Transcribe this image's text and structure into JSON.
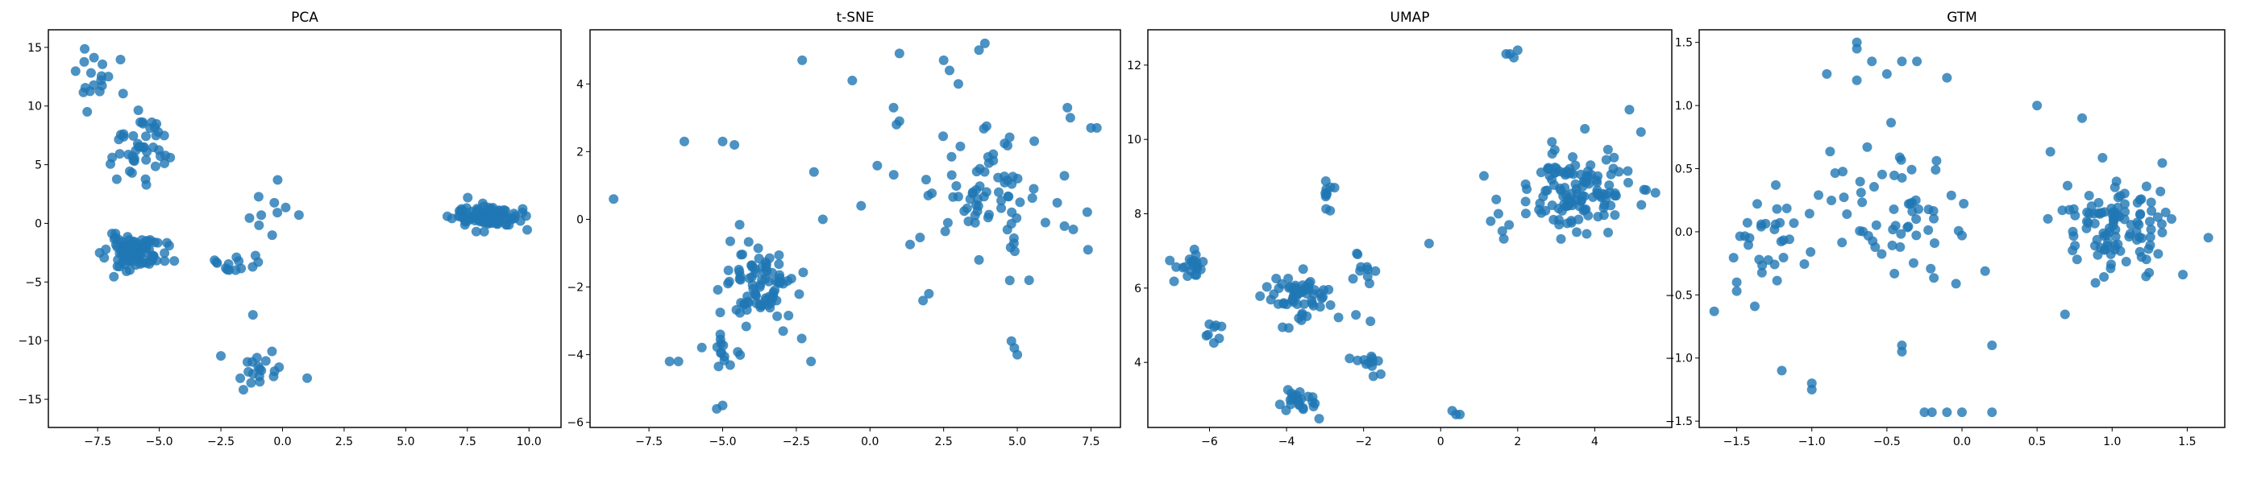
{
  "figure": {
    "background": "#ffffff",
    "point_color": "#1f77b4",
    "point_alpha": 0.8
  },
  "chart_data": [
    {
      "type": "scatter",
      "title": "PCA",
      "xlim": [
        -9.5,
        11.3
      ],
      "ylim": [
        -17.4,
        16.5
      ],
      "xticks": [
        -7.5,
        -5.0,
        -2.5,
        0.0,
        2.5,
        5.0,
        7.5,
        10.0
      ],
      "xtick_labels": [
        "−7.5",
        "−5.0",
        "−2.5",
        "0.0",
        "2.5",
        "5.0",
        "7.5",
        "10.0"
      ],
      "yticks": [
        -15,
        -10,
        -5,
        0,
        5,
        10,
        15
      ],
      "ytick_labels": [
        "−15",
        "−10",
        "−5",
        "0",
        "5",
        "10",
        "15"
      ],
      "grid": false,
      "clusters": [
        {
          "c": [
            -6.0,
            -2.5
          ],
          "s": [
            1.0,
            1.2
          ],
          "n": 90,
          "seed": 11
        },
        {
          "c": [
            -5.8,
            6.5
          ],
          "s": [
            0.9,
            2.2
          ],
          "n": 45,
          "seed": 12
        },
        {
          "c": [
            -7.7,
            12.5
          ],
          "s": [
            0.8,
            1.8
          ],
          "n": 18,
          "seed": 13
        },
        {
          "c": [
            8.3,
            0.6
          ],
          "s": [
            1.1,
            0.8
          ],
          "n": 110,
          "seed": 14
        },
        {
          "c": [
            -1.0,
            -12.5
          ],
          "s": [
            0.7,
            2.2
          ],
          "n": 18,
          "seed": 15
        },
        {
          "c": [
            -2.0,
            -3.5
          ],
          "s": [
            0.9,
            1.0
          ],
          "n": 14,
          "seed": 16
        },
        {
          "c": [
            -0.5,
            1.0
          ],
          "s": [
            0.9,
            2.2
          ],
          "n": 10,
          "seed": 17
        }
      ],
      "points": [
        [
          -2.5,
          -11.3
        ],
        [
          1.0,
          -13.2
        ],
        [
          -1.2,
          -7.8
        ]
      ]
    },
    {
      "type": "scatter",
      "title": "t-SNE",
      "xlim": [
        -9.5,
        8.5
      ],
      "ylim": [
        -6.15,
        5.6
      ],
      "xticks": [
        -7.5,
        -5.0,
        -2.5,
        0.0,
        2.5,
        5.0,
        7.5
      ],
      "xtick_labels": [
        "−7.5",
        "−5.0",
        "−2.5",
        "0.0",
        "2.5",
        "5.0",
        "7.5"
      ],
      "yticks": [
        -6,
        -4,
        -2,
        0,
        2,
        4
      ],
      "ytick_labels": [
        "−6",
        "−4",
        "−2",
        "0",
        "2",
        "4"
      ],
      "grid": false,
      "clusters": [
        {
          "c": [
            -3.8,
            -1.9
          ],
          "s": [
            1.0,
            1.1
          ],
          "n": 85,
          "seed": 21
        },
        {
          "c": [
            3.8,
            1.0
          ],
          "s": [
            1.9,
            1.4
          ],
          "n": 75,
          "seed": 22
        },
        {
          "c": [
            -5.2,
            -3.8
          ],
          "s": [
            0.6,
            0.6
          ],
          "n": 14,
          "seed": 23
        }
      ],
      "points": [
        [
          -8.7,
          0.6
        ],
        [
          -2.3,
          4.7
        ],
        [
          1.0,
          4.9
        ],
        [
          3.9,
          5.2
        ],
        [
          3.7,
          5.0
        ],
        [
          -5.0,
          2.3
        ],
        [
          -4.6,
          2.2
        ],
        [
          -6.3,
          2.3
        ],
        [
          -6.5,
          -4.2
        ],
        [
          -6.8,
          -4.2
        ],
        [
          -5.2,
          -5.6
        ],
        [
          -5.0,
          -5.5
        ],
        [
          4.8,
          -3.6
        ],
        [
          5.0,
          -4.0
        ],
        [
          4.9,
          -3.8
        ],
        [
          -0.6,
          4.1
        ],
        [
          0.8,
          3.3
        ],
        [
          0.9,
          2.8
        ],
        [
          1.0,
          2.9
        ],
        [
          2.5,
          4.7
        ],
        [
          2.7,
          4.4
        ],
        [
          3.0,
          4.0
        ],
        [
          6.7,
          3.3
        ],
        [
          6.8,
          3.0
        ],
        [
          7.7,
          2.7
        ],
        [
          7.5,
          2.7
        ],
        [
          -1.6,
          0.0
        ],
        [
          -0.3,
          0.4
        ],
        [
          -2.0,
          -4.2
        ],
        [
          1.8,
          -2.4
        ],
        [
          2.0,
          -2.2
        ],
        [
          7.4,
          -0.9
        ],
        [
          6.6,
          -0.2
        ],
        [
          6.9,
          -0.3
        ],
        [
          5.4,
          -1.8
        ],
        [
          3.7,
          -1.2
        ],
        [
          -1.9,
          1.4
        ]
      ]
    },
    {
      "type": "scatter",
      "title": "UMAP",
      "xlim": [
        -7.6,
        6.0
      ],
      "ylim": [
        2.25,
        12.95
      ],
      "xticks": [
        -6,
        -4,
        -2,
        0,
        2,
        4
      ],
      "xtick_labels": [
        "−6",
        "−4",
        "−2",
        "0",
        "2",
        "4"
      ],
      "yticks": [
        4,
        6,
        8,
        10,
        12
      ],
      "ytick_labels": [
        "4",
        "6",
        "8",
        "10",
        "12"
      ],
      "grid": false,
      "clusters": [
        {
          "c": [
            3.5,
            8.6
          ],
          "s": [
            1.2,
            0.9
          ],
          "n": 130,
          "seed": 31
        },
        {
          "c": [
            -3.6,
            5.8
          ],
          "s": [
            0.8,
            0.5
          ],
          "n": 60,
          "seed": 32
        },
        {
          "c": [
            -6.5,
            6.6
          ],
          "s": [
            0.4,
            0.3
          ],
          "n": 22,
          "seed": 33
        },
        {
          "c": [
            -3.7,
            3.0
          ],
          "s": [
            0.5,
            0.3
          ],
          "n": 24,
          "seed": 34
        },
        {
          "c": [
            -1.8,
            4.0
          ],
          "s": [
            0.3,
            0.3
          ],
          "n": 12,
          "seed": 35
        },
        {
          "c": [
            -3.0,
            8.3
          ],
          "s": [
            0.2,
            0.4
          ],
          "n": 10,
          "seed": 36
        },
        {
          "c": [
            -1.9,
            6.5
          ],
          "s": [
            0.3,
            0.4
          ],
          "n": 10,
          "seed": 37
        },
        {
          "c": [
            -5.8,
            4.8
          ],
          "s": [
            0.4,
            0.4
          ],
          "n": 8,
          "seed": 38
        }
      ],
      "points": [
        [
          1.8,
          12.3
        ],
        [
          1.9,
          12.2
        ],
        [
          1.7,
          12.3
        ],
        [
          2.0,
          12.4
        ],
        [
          0.3,
          2.7
        ],
        [
          0.4,
          2.6
        ],
        [
          0.5,
          2.6
        ],
        [
          -0.3,
          7.2
        ],
        [
          4.9,
          10.8
        ],
        [
          5.2,
          10.2
        ],
        [
          1.3,
          7.8
        ],
        [
          1.5,
          8.0
        ]
      ]
    },
    {
      "type": "scatter",
      "title": "GTM",
      "xlim": [
        -1.75,
        1.75
      ],
      "ylim": [
        -1.55,
        1.6
      ],
      "xticks": [
        -1.5,
        -1.0,
        -0.5,
        0.0,
        0.5,
        1.0,
        1.5
      ],
      "xtick_labels": [
        "−1.5",
        "−1.0",
        "−0.5",
        "0.0",
        "0.5",
        "1.0",
        "1.5"
      ],
      "yticks": [
        -1.5,
        -1.0,
        -0.5,
        0.0,
        0.5,
        1.0,
        1.5
      ],
      "ytick_labels": [
        "−1.5",
        "−1.0",
        "−0.5",
        "0.0",
        "0.5",
        "1.0",
        "1.5"
      ],
      "grid": false,
      "clusters": [
        {
          "c": [
            1.05,
            0.05
          ],
          "s": [
            0.3,
            0.35
          ],
          "n": 110,
          "seed": 41
        },
        {
          "c": [
            -1.3,
            0.0
          ],
          "s": [
            0.2,
            0.3
          ],
          "n": 30,
          "seed": 42
        },
        {
          "c": [
            -0.45,
            0.1
          ],
          "s": [
            0.45,
            0.55
          ],
          "n": 60,
          "seed": 43
        }
      ],
      "points": [
        [
          -0.7,
          1.5
        ],
        [
          -0.7,
          1.45
        ],
        [
          -0.6,
          1.35
        ],
        [
          -0.4,
          1.35
        ],
        [
          -0.3,
          1.35
        ],
        [
          -0.5,
          1.25
        ],
        [
          -0.7,
          1.2
        ],
        [
          -0.9,
          1.25
        ],
        [
          -0.1,
          1.22
        ],
        [
          -1.0,
          -1.2
        ],
        [
          -1.0,
          -1.25
        ],
        [
          -1.2,
          -1.1
        ],
        [
          -0.2,
          -1.43
        ],
        [
          0.0,
          -1.43
        ],
        [
          0.2,
          -1.43
        ],
        [
          -0.1,
          -1.43
        ],
        [
          -0.25,
          -1.43
        ],
        [
          -1.65,
          -0.63
        ],
        [
          -1.5,
          -0.4
        ],
        [
          -1.5,
          -0.47
        ],
        [
          -0.4,
          -0.9
        ],
        [
          -0.4,
          -0.95
        ],
        [
          0.5,
          1.0
        ],
        [
          0.8,
          0.9
        ],
        [
          0.2,
          -0.9
        ],
        [
          0.0,
          -0.03
        ]
      ]
    }
  ]
}
